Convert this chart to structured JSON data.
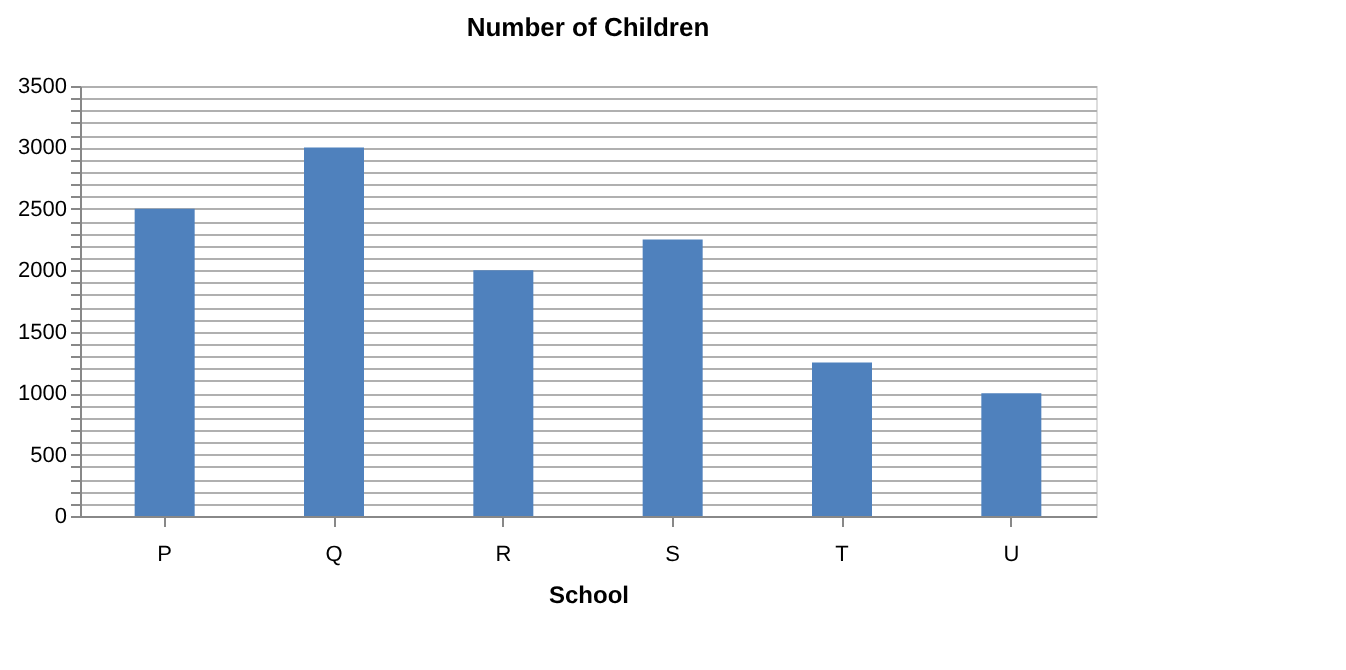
{
  "chart_data": {
    "type": "bar",
    "title": "Number of Children",
    "xlabel": "School",
    "categories": [
      "P",
      "Q",
      "R",
      "S",
      "T",
      "U"
    ],
    "values": [
      2500,
      3000,
      2000,
      2250,
      1250,
      1000
    ],
    "color": "#4f81bd",
    "ylim": [
      0,
      3500
    ],
    "yticks": [
      0,
      {
        "value": 100,
        "label": null
      },
      {
        "value": 200,
        "label": null
      },
      {
        "value": 300,
        "label": null
      },
      {
        "value": 400,
        "label": null
      },
      500,
      {
        "value": 600,
        "label": null
      },
      {
        "value": 700,
        "label": null
      },
      {
        "value": 800,
        "label": null
      },
      {
        "value": 900,
        "label": null
      },
      1000,
      {
        "value": 1100,
        "label": null
      },
      {
        "value": 1200,
        "label": null
      },
      {
        "value": 1300,
        "label": null
      },
      {
        "value": 1400,
        "label": null
      },
      1500,
      {
        "value": 1600,
        "label": null
      },
      {
        "value": 1700,
        "label": null
      },
      {
        "value": 1800,
        "label": null
      },
      {
        "value": 1900,
        "label": null
      },
      2000,
      {
        "value": 2100,
        "label": null
      },
      {
        "value": 2200,
        "label": null
      },
      {
        "value": 2300,
        "label": null
      },
      {
        "value": 2400,
        "label": null
      },
      2500,
      {
        "value": 2600,
        "label": null
      },
      {
        "value": 2700,
        "label": null
      },
      {
        "value": 2800,
        "label": null
      },
      {
        "value": 2900,
        "label": null
      },
      3000,
      {
        "value": 3100,
        "label": null
      },
      {
        "value": 3200,
        "label": null
      },
      {
        "value": 3300,
        "label": null
      },
      {
        "value": 3400,
        "label": null
      },
      3500
    ],
    "grid": "y"
  }
}
